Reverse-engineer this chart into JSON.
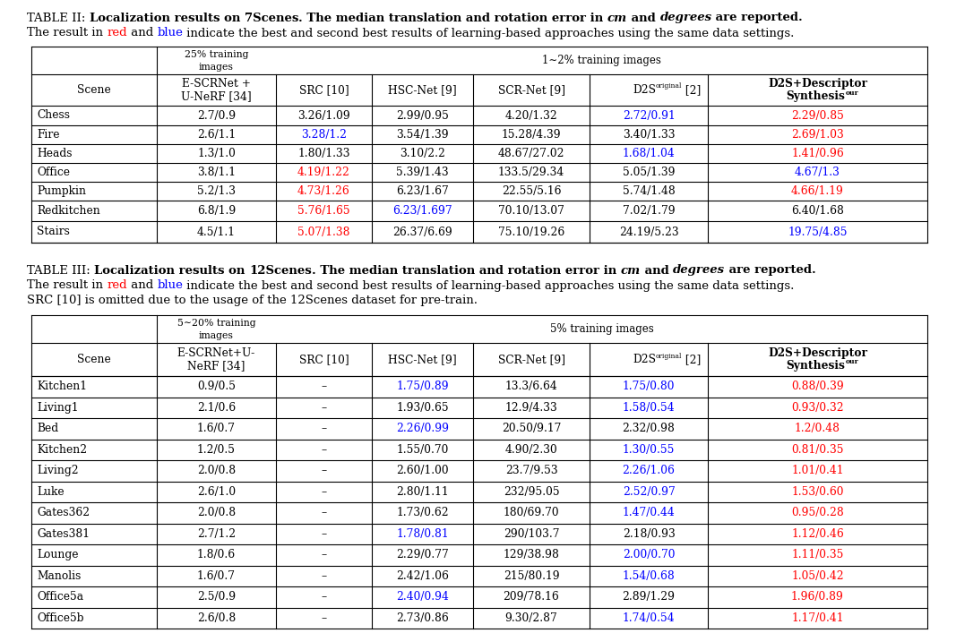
{
  "background_color": "#ffffff",
  "table2_data": [
    [
      "Chess",
      "2.7/0.9",
      "3.26/1.09",
      "2.99/0.95",
      "4.20/1.32",
      "2.72/0.91",
      "2.29/0.85"
    ],
    [
      "Fire",
      "2.6/1.1",
      "3.28/1.2",
      "3.54/1.39",
      "15.28/4.39",
      "3.40/1.33",
      "2.69/1.03"
    ],
    [
      "Heads",
      "1.3/1.0",
      "1.80/1.33",
      "3.10/2.2",
      "48.67/27.02",
      "1.68/1.04",
      "1.41/0.96"
    ],
    [
      "Office",
      "3.8/1.1",
      "4.19/1.22",
      "5.39/1.43",
      "133.5/29.34",
      "5.05/1.39",
      "4.67/1.3"
    ],
    [
      "Pumpkin",
      "5.2/1.3",
      "4.73/1.26",
      "6.23/1.67",
      "22.55/5.16",
      "5.74/1.48",
      "4.66/1.19"
    ],
    [
      "Redkitchen",
      "6.8/1.9",
      "5.76/1.65",
      "6.23/1.697",
      "70.10/13.07",
      "7.02/1.79",
      "6.40/1.68"
    ],
    [
      "Stairs",
      "4.5/1.1",
      "5.07/1.38",
      "26.37/6.69",
      "75.10/19.26",
      "24.19/5.23",
      "19.75/4.85"
    ]
  ],
  "table2_colors": [
    [
      "black",
      "black",
      "black",
      "black",
      "blue",
      "red"
    ],
    [
      "black",
      "blue",
      "black",
      "black",
      "black",
      "red"
    ],
    [
      "black",
      "black",
      "black",
      "black",
      "blue",
      "red"
    ],
    [
      "black",
      "red",
      "black",
      "black",
      "black",
      "blue"
    ],
    [
      "black",
      "red",
      "black",
      "black",
      "black",
      "red"
    ],
    [
      "black",
      "red",
      "blue",
      "black",
      "black",
      "black"
    ],
    [
      "black",
      "red",
      "black",
      "black",
      "black",
      "blue"
    ]
  ],
  "table3_data": [
    [
      "Kitchen1",
      "0.9/0.5",
      "–",
      "1.75/0.89",
      "13.3/6.64",
      "1.75/0.80",
      "0.88/0.39"
    ],
    [
      "Living1",
      "2.1/0.6",
      "–",
      "1.93/0.65",
      "12.9/4.33",
      "1.58/0.54",
      "0.93/0.32"
    ],
    [
      "Bed",
      "1.6/0.7",
      "–",
      "2.26/0.99",
      "20.50/9.17",
      "2.32/0.98",
      "1.2/0.48"
    ],
    [
      "Kitchen2",
      "1.2/0.5",
      "–",
      "1.55/0.70",
      "4.90/2.30",
      "1.30/0.55",
      "0.81/0.35"
    ],
    [
      "Living2",
      "2.0/0.8",
      "–",
      "2.60/1.00",
      "23.7/9.53",
      "2.26/1.06",
      "1.01/0.41"
    ],
    [
      "Luke",
      "2.6/1.0",
      "–",
      "2.80/1.11",
      "232/95.05",
      "2.52/0.97",
      "1.53/0.60"
    ],
    [
      "Gates362",
      "2.0/0.8",
      "–",
      "1.73/0.62",
      "180/69.70",
      "1.47/0.44",
      "0.95/0.28"
    ],
    [
      "Gates381",
      "2.7/1.2",
      "–",
      "1.78/0.81",
      "290/103.7",
      "2.18/0.93",
      "1.12/0.46"
    ],
    [
      "Lounge",
      "1.8/0.6",
      "–",
      "2.29/0.77",
      "129/38.98",
      "2.00/0.70",
      "1.11/0.35"
    ],
    [
      "Manolis",
      "1.6/0.7",
      "–",
      "2.42/1.06",
      "215/80.19",
      "1.54/0.68",
      "1.05/0.42"
    ],
    [
      "Office5a",
      "2.5/0.9",
      "–",
      "2.40/0.94",
      "209/78.16",
      "2.89/1.29",
      "1.96/0.89"
    ],
    [
      "Office5b",
      "2.6/0.8",
      "–",
      "2.73/0.86",
      "9.30/2.87",
      "1.74/0.54",
      "1.17/0.41"
    ]
  ],
  "table3_colors": [
    [
      "black",
      "black",
      "blue",
      "black",
      "blue",
      "red"
    ],
    [
      "black",
      "black",
      "black",
      "black",
      "blue",
      "red"
    ],
    [
      "black",
      "black",
      "blue",
      "black",
      "black",
      "red"
    ],
    [
      "black",
      "black",
      "black",
      "black",
      "blue",
      "red"
    ],
    [
      "black",
      "black",
      "black",
      "black",
      "blue",
      "red"
    ],
    [
      "black",
      "black",
      "black",
      "black",
      "blue",
      "red"
    ],
    [
      "black",
      "black",
      "black",
      "black",
      "blue",
      "red"
    ],
    [
      "black",
      "black",
      "blue",
      "black",
      "black",
      "red"
    ],
    [
      "black",
      "black",
      "black",
      "black",
      "blue",
      "red"
    ],
    [
      "black",
      "black",
      "black",
      "black",
      "blue",
      "red"
    ],
    [
      "black",
      "black",
      "blue",
      "black",
      "black",
      "red"
    ],
    [
      "black",
      "black",
      "black",
      "black",
      "blue",
      "red"
    ]
  ],
  "fs_caption": 9.5,
  "fs_table": 8.8,
  "lw": 0.8
}
